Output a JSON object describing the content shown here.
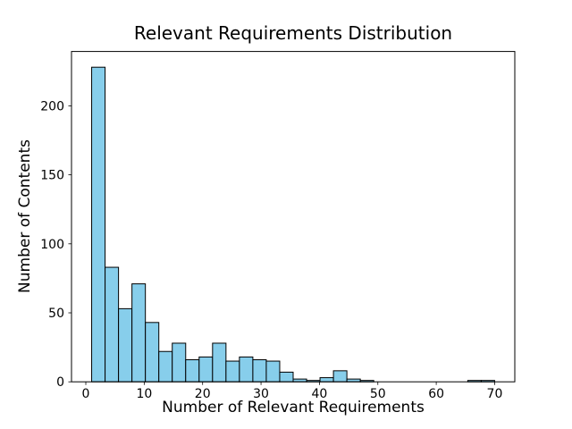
{
  "chart_data": {
    "type": "bar",
    "subtype": "histogram",
    "title": "Relevant Requirements Distribution",
    "xlabel": "Number of Relevant Requirements",
    "ylabel": "Number of Contents",
    "bar_color": "#87CEEB",
    "bar_edge_color": "#000000",
    "background_color": "#ffffff",
    "grid": false,
    "legend": false,
    "bin_start": 1,
    "bin_width": 2.3,
    "counts": [
      228,
      83,
      53,
      71,
      43,
      22,
      28,
      16,
      18,
      28,
      15,
      18,
      16,
      15,
      7,
      2,
      1,
      3,
      8,
      2,
      1,
      0,
      0,
      0,
      0,
      0,
      0,
      0,
      1,
      1
    ],
    "x_ticks": [
      0,
      10,
      20,
      30,
      40,
      50,
      60,
      70
    ],
    "y_ticks": [
      0,
      50,
      100,
      150,
      200
    ],
    "xlim": [
      -2.45,
      73.45
    ],
    "ylim": [
      0,
      239.4
    ]
  }
}
